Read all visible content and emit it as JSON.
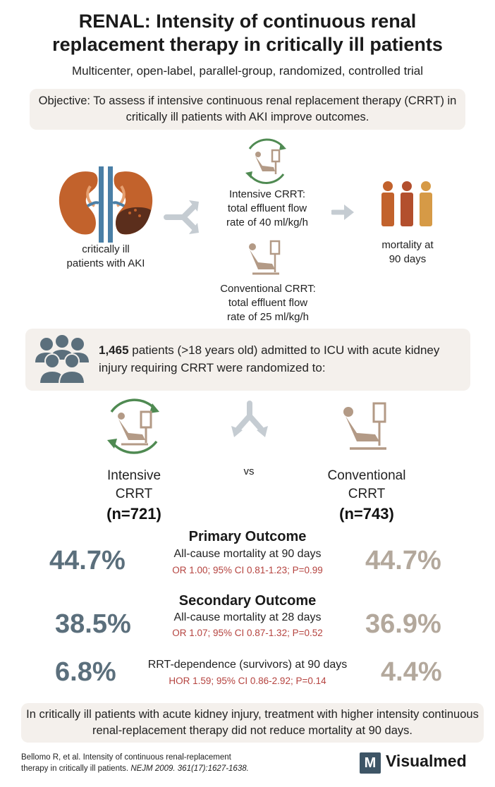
{
  "header": {
    "title_line1": "RENAL: Intensity of continuous renal",
    "title_line2": "replacement therapy in critically ill patients",
    "subtitle": "Multicenter, open-label, parallel-group, randomized, controlled trial"
  },
  "objective": "Objective: To assess if intensive continuous renal replacement therapy (CRRT) in critically ill patients with AKI improve outcomes.",
  "design": {
    "population_line1": "critically ill",
    "population_line2": "patients with AKI",
    "intensive_line1": "Intensive CRRT:",
    "intensive_line2": "total effluent flow",
    "intensive_line3": "rate of 40 ml/kg/h",
    "conventional_line1": "Conventional CRRT:",
    "conventional_line2": "total effluent flow",
    "conventional_line3": "rate of 25 ml/kg/h",
    "outcome_line1": "mortality at",
    "outcome_line2": "90 days"
  },
  "enrollment": {
    "count": "1,465",
    "text": " patients (>18 years old) admitted to ICU with acute kidney injury requiring CRRT were randomized to:"
  },
  "arms": {
    "left_name1": "Intensive",
    "left_name2": "CRRT",
    "left_n": "(n=721)",
    "vs": "vs",
    "right_name1": "Conventional",
    "right_name2": "CRRT",
    "right_n": "(n=743)"
  },
  "primary": {
    "heading": "Primary Outcome",
    "desc": "All-cause mortality at 90 days",
    "stat": "OR 1.00; 95% CI 0.81-1.23; P=0.99",
    "left": "44.7%",
    "right": "44.7%"
  },
  "secondary": {
    "heading": "Secondary Outcome",
    "desc": "All-cause mortality at 28 days",
    "stat": "OR 1.07; 95% CI 0.87-1.32; P=0.52",
    "left": "38.5%",
    "right": "36.9%"
  },
  "rrt": {
    "desc": "RRT-dependence (survivors) at 90 days",
    "stat": "HOR 1.59; 95% CI 0.86-2.92; P=0.14",
    "left": "6.8%",
    "right": "4.4%"
  },
  "conclusion": "In critically ill patients with acute kidney injury, treatment with higher intensity continuous renal-replacement therapy did not reduce mortality at 90 days.",
  "reference": {
    "line1": "Bellomo R, et al. Intensity of continuous renal-replacement",
    "line2a": "therapy in critically ill patients. ",
    "journal": "NEJM  2009. 361(17):1627-1638."
  },
  "logo": {
    "mark": "M",
    "name": "Visualmed"
  },
  "icons": {
    "kidney": "kidneys-icon",
    "chair_intensive": "dialysis-chair-cycle-icon",
    "chair_conventional": "dialysis-chair-icon",
    "people": "people-group-icon",
    "mortality": "three-persons-icon"
  },
  "colors": {
    "accent_green": "#4f8a52",
    "chair_brown": "#b39a86",
    "intensive_blue": "#5b6f7c",
    "conventional_tan": "#b3a89c",
    "stat_red": "#b5433f",
    "panel_bg": "#f4f0ec"
  }
}
